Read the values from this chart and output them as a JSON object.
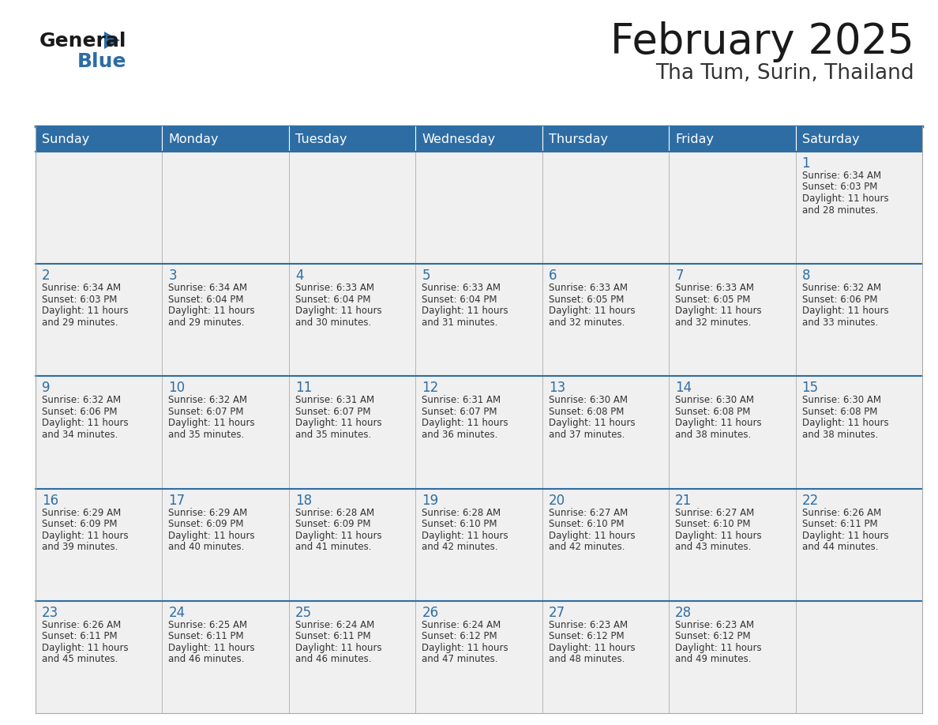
{
  "title": "February 2025",
  "subtitle": "Tha Tum, Surin, Thailand",
  "days_of_week": [
    "Sunday",
    "Monday",
    "Tuesday",
    "Wednesday",
    "Thursday",
    "Friday",
    "Saturday"
  ],
  "header_bg": "#2E6DA4",
  "header_text": "#FFFFFF",
  "cell_bg": "#F0F0F0",
  "cell_border_color": "#AAAAAA",
  "row_separator_color": "#2E6DA4",
  "day_num_color": "#2E6DA4",
  "info_text_color": "#333333",
  "title_color": "#1a1a1a",
  "subtitle_color": "#333333",
  "logo_general_color": "#1a1a1a",
  "logo_blue_color": "#2E6DA4",
  "calendar": [
    [
      null,
      null,
      null,
      null,
      null,
      null,
      {
        "day": 1,
        "sunrise": "6:34 AM",
        "sunset": "6:03 PM",
        "daylight": "11 hours and 28 minutes."
      }
    ],
    [
      {
        "day": 2,
        "sunrise": "6:34 AM",
        "sunset": "6:03 PM",
        "daylight": "11 hours and 29 minutes."
      },
      {
        "day": 3,
        "sunrise": "6:34 AM",
        "sunset": "6:04 PM",
        "daylight": "11 hours and 29 minutes."
      },
      {
        "day": 4,
        "sunrise": "6:33 AM",
        "sunset": "6:04 PM",
        "daylight": "11 hours and 30 minutes."
      },
      {
        "day": 5,
        "sunrise": "6:33 AM",
        "sunset": "6:04 PM",
        "daylight": "11 hours and 31 minutes."
      },
      {
        "day": 6,
        "sunrise": "6:33 AM",
        "sunset": "6:05 PM",
        "daylight": "11 hours and 32 minutes."
      },
      {
        "day": 7,
        "sunrise": "6:33 AM",
        "sunset": "6:05 PM",
        "daylight": "11 hours and 32 minutes."
      },
      {
        "day": 8,
        "sunrise": "6:32 AM",
        "sunset": "6:06 PM",
        "daylight": "11 hours and 33 minutes."
      }
    ],
    [
      {
        "day": 9,
        "sunrise": "6:32 AM",
        "sunset": "6:06 PM",
        "daylight": "11 hours and 34 minutes."
      },
      {
        "day": 10,
        "sunrise": "6:32 AM",
        "sunset": "6:07 PM",
        "daylight": "11 hours and 35 minutes."
      },
      {
        "day": 11,
        "sunrise": "6:31 AM",
        "sunset": "6:07 PM",
        "daylight": "11 hours and 35 minutes."
      },
      {
        "day": 12,
        "sunrise": "6:31 AM",
        "sunset": "6:07 PM",
        "daylight": "11 hours and 36 minutes."
      },
      {
        "day": 13,
        "sunrise": "6:30 AM",
        "sunset": "6:08 PM",
        "daylight": "11 hours and 37 minutes."
      },
      {
        "day": 14,
        "sunrise": "6:30 AM",
        "sunset": "6:08 PM",
        "daylight": "11 hours and 38 minutes."
      },
      {
        "day": 15,
        "sunrise": "6:30 AM",
        "sunset": "6:08 PM",
        "daylight": "11 hours and 38 minutes."
      }
    ],
    [
      {
        "day": 16,
        "sunrise": "6:29 AM",
        "sunset": "6:09 PM",
        "daylight": "11 hours and 39 minutes."
      },
      {
        "day": 17,
        "sunrise": "6:29 AM",
        "sunset": "6:09 PM",
        "daylight": "11 hours and 40 minutes."
      },
      {
        "day": 18,
        "sunrise": "6:28 AM",
        "sunset": "6:09 PM",
        "daylight": "11 hours and 41 minutes."
      },
      {
        "day": 19,
        "sunrise": "6:28 AM",
        "sunset": "6:10 PM",
        "daylight": "11 hours and 42 minutes."
      },
      {
        "day": 20,
        "sunrise": "6:27 AM",
        "sunset": "6:10 PM",
        "daylight": "11 hours and 42 minutes."
      },
      {
        "day": 21,
        "sunrise": "6:27 AM",
        "sunset": "6:10 PM",
        "daylight": "11 hours and 43 minutes."
      },
      {
        "day": 22,
        "sunrise": "6:26 AM",
        "sunset": "6:11 PM",
        "daylight": "11 hours and 44 minutes."
      }
    ],
    [
      {
        "day": 23,
        "sunrise": "6:26 AM",
        "sunset": "6:11 PM",
        "daylight": "11 hours and 45 minutes."
      },
      {
        "day": 24,
        "sunrise": "6:25 AM",
        "sunset": "6:11 PM",
        "daylight": "11 hours and 46 minutes."
      },
      {
        "day": 25,
        "sunrise": "6:24 AM",
        "sunset": "6:11 PM",
        "daylight": "11 hours and 46 minutes."
      },
      {
        "day": 26,
        "sunrise": "6:24 AM",
        "sunset": "6:12 PM",
        "daylight": "11 hours and 47 minutes."
      },
      {
        "day": 27,
        "sunrise": "6:23 AM",
        "sunset": "6:12 PM",
        "daylight": "11 hours and 48 minutes."
      },
      {
        "day": 28,
        "sunrise": "6:23 AM",
        "sunset": "6:12 PM",
        "daylight": "11 hours and 49 minutes."
      },
      null
    ]
  ]
}
